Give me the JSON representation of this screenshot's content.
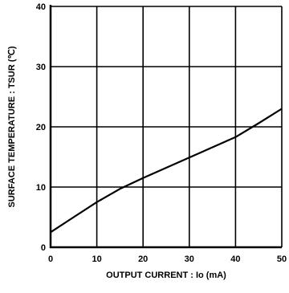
{
  "chart_data": {
    "type": "line",
    "xlabel": "OUTPUT CURRENT : Io (mA)",
    "ylabel": "SURFACE TEMPERATURE : TSUR (℃)",
    "xlim": [
      0,
      50
    ],
    "ylim": [
      0,
      40
    ],
    "x_ticks": [
      "0",
      "10",
      "20",
      "30",
      "40",
      "50"
    ],
    "y_ticks": [
      "0",
      "10",
      "20",
      "30",
      "40"
    ],
    "grid": true,
    "series": [
      {
        "x": [
          0,
          5,
          10,
          15,
          20,
          25,
          30,
          35,
          40,
          45,
          50
        ],
        "y": [
          2.5,
          5.0,
          7.5,
          9.7,
          11.5,
          13.2,
          14.9,
          16.6,
          18.3,
          20.6,
          23.0
        ]
      }
    ]
  }
}
